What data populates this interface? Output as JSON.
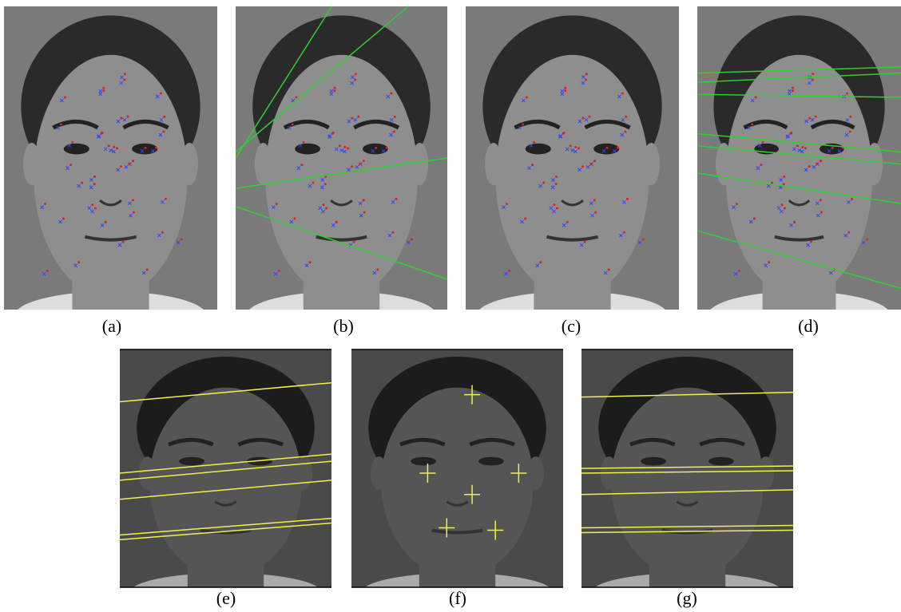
{
  "figure": {
    "panels": [
      {
        "caption": "(a)"
      },
      {
        "caption": "(b)"
      },
      {
        "caption": "(c)"
      },
      {
        "caption": "(d)"
      },
      {
        "caption": "(e)"
      },
      {
        "caption": "(f)"
      },
      {
        "caption": "(g)"
      }
    ]
  }
}
